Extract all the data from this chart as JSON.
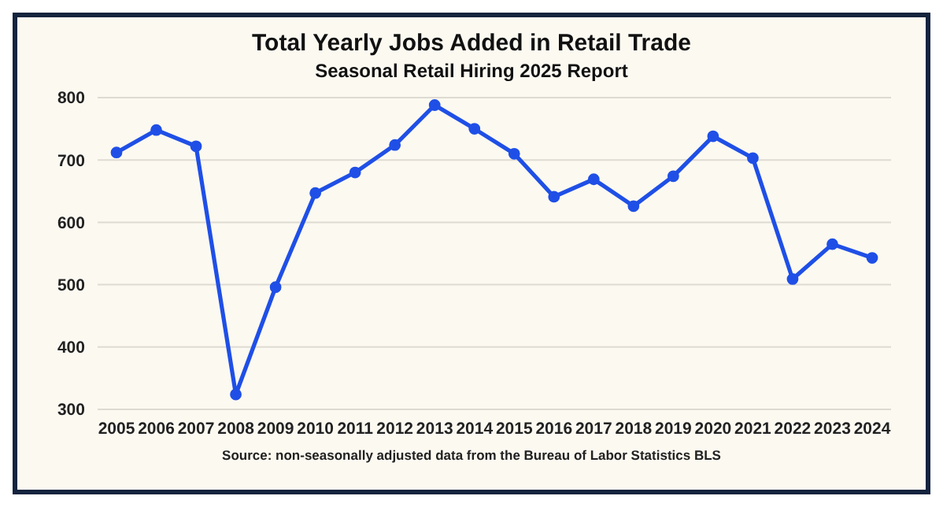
{
  "chart_data": {
    "type": "line",
    "title": "Total Yearly Jobs Added in Retail Trade",
    "subtitle": "Seasonal Retail Hiring 2025 Report",
    "annotations": [
      "Source: non-seasonally adjusted data from the Bureau of Labor Statistics BLS"
    ],
    "categories": [
      "2005",
      "2006",
      "2007",
      "2008",
      "2009",
      "2010",
      "2011",
      "2012",
      "2013",
      "2014",
      "2015",
      "2016",
      "2017",
      "2018",
      "2019",
      "2020",
      "2021",
      "2022",
      "2023",
      "2024"
    ],
    "series": [
      {
        "color": "#1f4fe6",
        "values": [
          712,
          748,
          722,
          324,
          496,
          647,
          680,
          724,
          788,
          750,
          710,
          641,
          669,
          626,
          674,
          738,
          703,
          509,
          565,
          543
        ]
      }
    ],
    "ylim": [
      300,
      800
    ],
    "yticks": [
      300,
      400,
      500,
      600,
      700,
      800
    ],
    "grid": "y",
    "marker": "circle",
    "line_style": "solid",
    "legend": false
  }
}
